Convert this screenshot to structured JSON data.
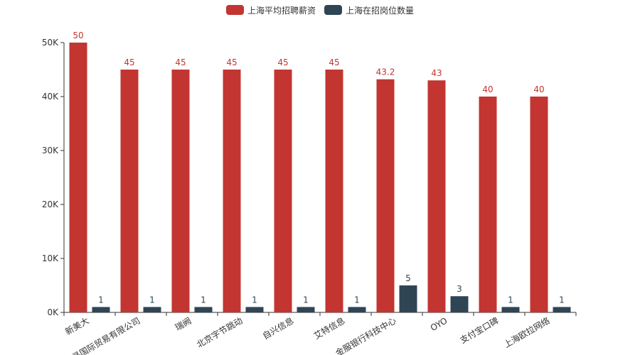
{
  "colors": {
    "salary": "#c23531",
    "count": "#2f4554",
    "axis": "#333333"
  },
  "legend": {
    "salary": "上海平均招聘薪资",
    "count": "上海在招岗位数量"
  },
  "chart_data": {
    "type": "bar",
    "categories": [
      "新美大",
      "丰寻国际贸易有限公司",
      "瑞阙",
      "北京字节跳动",
      "自兴信息",
      "艾特信息",
      "金服银行科技中心",
      "OYO",
      "支付宝口碑",
      "上海欧拉网络"
    ],
    "series": [
      {
        "name": "上海平均招聘薪资",
        "values": [
          50000,
          45000,
          45000,
          45000,
          45000,
          45000,
          43200,
          43000,
          40000,
          40000
        ],
        "labels": [
          "50",
          "45",
          "45",
          "45",
          "45",
          "45",
          "43.2",
          "43",
          "40",
          "40"
        ]
      },
      {
        "name": "上海在招岗位数量",
        "values": [
          1,
          1,
          1,
          1,
          1,
          1,
          5,
          3,
          1,
          1
        ],
        "labels": [
          "1",
          "1",
          "1",
          "1",
          "1",
          "1",
          "5",
          "3",
          "1",
          "1"
        ]
      }
    ],
    "y_ticks": [
      "0K",
      "10K",
      "20K",
      "30K",
      "40K",
      "50K"
    ],
    "ylim": [
      0,
      50000
    ],
    "count_display_scale": 1000,
    "legend_position": "top-center",
    "grid": false
  }
}
